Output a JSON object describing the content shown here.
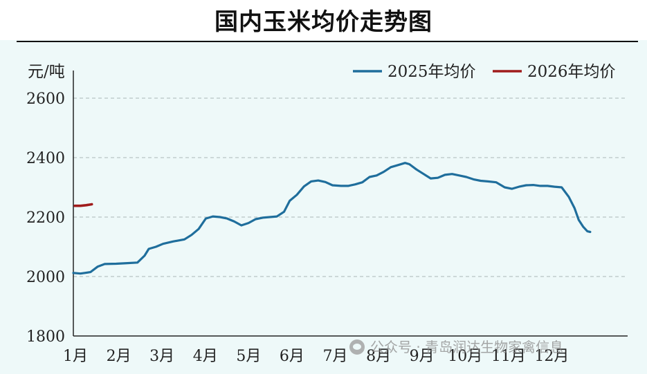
{
  "chart_data": {
    "type": "line",
    "title": "国内玉米均价走势图",
    "ylabel": "元/吨",
    "ylim": [
      1800,
      2600
    ],
    "yticks": [
      1800,
      2000,
      2200,
      2400,
      2600
    ],
    "xlim": [
      0,
      365
    ],
    "xtick_labels": [
      "1月",
      "2月",
      "3月",
      "4月",
      "5月",
      "6月",
      "7月",
      "8月",
      "9月",
      "10月",
      "11月",
      "12月"
    ],
    "grid": true,
    "legend_position": "top-right",
    "series": [
      {
        "name": "2025年均价",
        "color": "#1f6e9c",
        "points": [
          [
            0,
            2012
          ],
          [
            5,
            2010
          ],
          [
            8,
            2012
          ],
          [
            12,
            2015
          ],
          [
            17,
            2033
          ],
          [
            22,
            2042
          ],
          [
            30,
            2043
          ],
          [
            38,
            2045
          ],
          [
            45,
            2047
          ],
          [
            50,
            2070
          ],
          [
            53,
            2093
          ],
          [
            58,
            2100
          ],
          [
            63,
            2110
          ],
          [
            70,
            2118
          ],
          [
            78,
            2125
          ],
          [
            83,
            2140
          ],
          [
            88,
            2160
          ],
          [
            93,
            2195
          ],
          [
            98,
            2202
          ],
          [
            103,
            2200
          ],
          [
            108,
            2195
          ],
          [
            113,
            2185
          ],
          [
            118,
            2172
          ],
          [
            123,
            2180
          ],
          [
            128,
            2193
          ],
          [
            133,
            2198
          ],
          [
            138,
            2200
          ],
          [
            143,
            2202
          ],
          [
            148,
            2218
          ],
          [
            152,
            2255
          ],
          [
            157,
            2275
          ],
          [
            162,
            2303
          ],
          [
            167,
            2320
          ],
          [
            172,
            2323
          ],
          [
            177,
            2318
          ],
          [
            182,
            2307
          ],
          [
            188,
            2305
          ],
          [
            193,
            2305
          ],
          [
            198,
            2310
          ],
          [
            203,
            2317
          ],
          [
            208,
            2335
          ],
          [
            213,
            2340
          ],
          [
            218,
            2352
          ],
          [
            223,
            2368
          ],
          [
            228,
            2375
          ],
          [
            233,
            2382
          ],
          [
            236,
            2378
          ],
          [
            241,
            2360
          ],
          [
            246,
            2345
          ],
          [
            251,
            2330
          ],
          [
            256,
            2332
          ],
          [
            261,
            2342
          ],
          [
            266,
            2345
          ],
          [
            271,
            2340
          ],
          [
            276,
            2335
          ],
          [
            281,
            2327
          ],
          [
            286,
            2322
          ],
          [
            291,
            2320
          ],
          [
            297,
            2317
          ],
          [
            303,
            2300
          ],
          [
            308,
            2295
          ],
          [
            313,
            2302
          ],
          [
            318,
            2307
          ],
          [
            323,
            2308
          ],
          [
            328,
            2305
          ],
          [
            333,
            2305
          ],
          [
            338,
            2302
          ],
          [
            343,
            2300
          ],
          [
            348,
            2268
          ],
          [
            352,
            2230
          ],
          [
            355,
            2190
          ],
          [
            358,
            2168
          ],
          [
            361,
            2152
          ],
          [
            363,
            2150
          ]
        ]
      },
      {
        "name": "2026年均价",
        "color": "#a01c1c",
        "points": [
          [
            1,
            2238
          ],
          [
            5,
            2238
          ],
          [
            9,
            2240
          ],
          [
            13,
            2243
          ]
        ]
      }
    ]
  },
  "watermark": {
    "text": "公众号 · 青岛润达生物家禽信息"
  }
}
